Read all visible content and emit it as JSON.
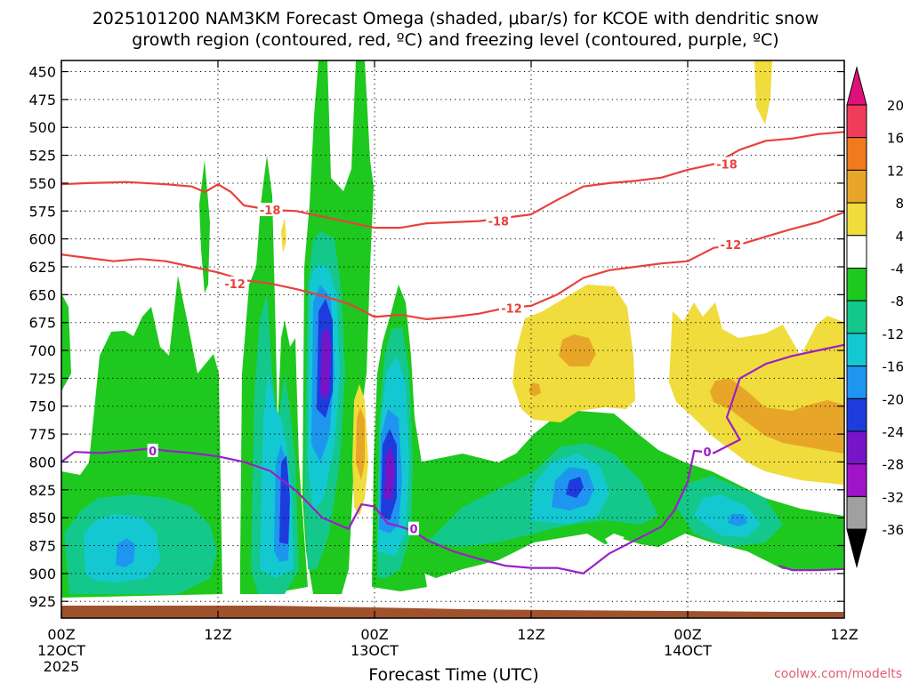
{
  "chart_data": {
    "type": "heatmap",
    "title_line1": "2025101200 NAM3KM Forecast Omega (shaded, μbar/s) for KCOE with dendritic snow",
    "title_line2": "growth region (contoured, red, ºC) and freezing level (contoured, purple, ºC)",
    "xlabel": "Forecast Time (UTC)",
    "credit": "coolwx.com/modelts",
    "x_range_hours": [
      0,
      60
    ],
    "x_ticks": [
      {
        "hour": 0,
        "labels": [
          "00Z",
          "12OCT",
          "2025"
        ]
      },
      {
        "hour": 12,
        "labels": [
          "12Z"
        ]
      },
      {
        "hour": 24,
        "labels": [
          "00Z",
          "13OCT"
        ]
      },
      {
        "hour": 36,
        "labels": [
          "12Z"
        ]
      },
      {
        "hour": 48,
        "labels": [
          "00Z",
          "14OCT"
        ]
      },
      {
        "hour": 60,
        "labels": [
          "12Z"
        ]
      }
    ],
    "y_range_hpa": [
      440,
      940
    ],
    "y_ticks": [
      450,
      475,
      500,
      525,
      550,
      575,
      600,
      625,
      650,
      675,
      700,
      725,
      750,
      775,
      800,
      825,
      850,
      875,
      900,
      925
    ],
    "colorbar": {
      "labels": [
        "20",
        "16",
        "12",
        "8",
        "4",
        "-4",
        "-8",
        "-12",
        "-16",
        "-20",
        "-24",
        "-28",
        "-32",
        "-36"
      ],
      "colors": [
        "#f03c5a",
        "#f07a1e",
        "#e8a628",
        "#f0dc3c",
        "#ffffff",
        "#1ec81e",
        "#14c88c",
        "#14c8d2",
        "#1e96f0",
        "#1e3cdc",
        "#7814c8",
        "#a014c8",
        "#a0a0a0",
        "#000000"
      ],
      "top_arrow_color": "#e0107a",
      "bottom_arrow_color": "#000000"
    },
    "temperature_contours": [
      {
        "name": "-18 C",
        "label": "-18",
        "color": "#e8413c",
        "points": [
          [
            0,
            551
          ],
          [
            2,
            550
          ],
          [
            5,
            549
          ],
          [
            8,
            551
          ],
          [
            10,
            553
          ],
          [
            11,
            558
          ],
          [
            12,
            551
          ],
          [
            13,
            558
          ],
          [
            14,
            570
          ],
          [
            16,
            574
          ],
          [
            18,
            575
          ],
          [
            20,
            580
          ],
          [
            22,
            585
          ],
          [
            24,
            590
          ],
          [
            26,
            590
          ],
          [
            28,
            586
          ],
          [
            32,
            584
          ],
          [
            36,
            578
          ],
          [
            38,
            565
          ],
          [
            40,
            553
          ],
          [
            42,
            550
          ],
          [
            44,
            548
          ],
          [
            46,
            545
          ],
          [
            48,
            538
          ],
          [
            50,
            533
          ],
          [
            52,
            520
          ],
          [
            54,
            512
          ],
          [
            56,
            510
          ],
          [
            58,
            506
          ],
          [
            60,
            504
          ]
        ],
        "labels_at": [
          [
            16,
            574
          ],
          [
            33.5,
            584
          ],
          [
            51,
            533
          ]
        ]
      },
      {
        "name": "-12 C",
        "label": "-12",
        "color": "#e8413c",
        "points": [
          [
            0,
            614
          ],
          [
            2,
            617
          ],
          [
            4,
            620
          ],
          [
            6,
            618
          ],
          [
            8,
            620
          ],
          [
            10,
            625
          ],
          [
            12,
            630
          ],
          [
            14,
            637
          ],
          [
            16,
            640
          ],
          [
            18,
            645
          ],
          [
            20,
            651
          ],
          [
            22,
            658
          ],
          [
            24,
            670
          ],
          [
            26,
            668
          ],
          [
            28,
            672
          ],
          [
            30,
            670
          ],
          [
            32,
            667
          ],
          [
            34,
            662
          ],
          [
            36,
            660
          ],
          [
            38,
            650
          ],
          [
            40,
            635
          ],
          [
            42,
            628
          ],
          [
            44,
            625
          ],
          [
            46,
            622
          ],
          [
            48,
            620
          ],
          [
            50,
            608
          ],
          [
            52,
            605
          ],
          [
            54,
            598
          ],
          [
            56,
            591
          ],
          [
            58,
            585
          ],
          [
            60,
            576
          ]
        ],
        "labels_at": [
          [
            13.3,
            640
          ],
          [
            34.5,
            662
          ],
          [
            51.3,
            605
          ]
        ]
      },
      {
        "name": "0 C freezing level",
        "label": "0",
        "color": "#9b1fc8",
        "points": [
          [
            0,
            800
          ],
          [
            1,
            791
          ],
          [
            3,
            792
          ],
          [
            5,
            790
          ],
          [
            7,
            788
          ],
          [
            8,
            790
          ],
          [
            10,
            792
          ],
          [
            12,
            795
          ],
          [
            14,
            800
          ],
          [
            16,
            808
          ],
          [
            18,
            826
          ],
          [
            20,
            850
          ],
          [
            22,
            860
          ],
          [
            23,
            838
          ],
          [
            24,
            840
          ],
          [
            25,
            855
          ],
          [
            26,
            858
          ],
          [
            27,
            862
          ],
          [
            28,
            870
          ],
          [
            30,
            880
          ],
          [
            32,
            887
          ],
          [
            34,
            893
          ],
          [
            36,
            895
          ],
          [
            38,
            895
          ],
          [
            40,
            900
          ],
          [
            42,
            882
          ],
          [
            44,
            870
          ],
          [
            46,
            858
          ],
          [
            47,
            843
          ],
          [
            48,
            818
          ],
          [
            48.5,
            790
          ],
          [
            50,
            792
          ],
          [
            52,
            780
          ],
          [
            51,
            760
          ],
          [
            52,
            725
          ],
          [
            54,
            712
          ],
          [
            56,
            705
          ],
          [
            58,
            700
          ],
          [
            60,
            695
          ]
        ],
        "labels_at": [
          [
            7,
            790
          ],
          [
            27,
            860
          ],
          [
            49.5,
            791
          ]
        ]
      },
      {
        "name": "0 C lower branch",
        "label": "",
        "color": "#9b1fc8",
        "points": [
          [
            55,
            893
          ],
          [
            56,
            897
          ],
          [
            58,
            897
          ],
          [
            60,
            896
          ]
        ],
        "labels_at": []
      }
    ],
    "terrain_color": "#a0522d",
    "omega_regions": [
      {
        "name": "ascent-early-low",
        "min_value": -16,
        "center_hour": 5,
        "center_hpa": 855
      },
      {
        "name": "ascent-12z-column",
        "min_value": -24,
        "center_hour": 17,
        "center_hpa": 800
      },
      {
        "name": "ascent-18z-core",
        "min_value": -28,
        "center_hour": 20.5,
        "center_hpa": 660
      },
      {
        "name": "ascent-03z-core",
        "min_value": -28,
        "center_hour": 25,
        "center_hpa": 760
      },
      {
        "name": "ascent-16z-low",
        "min_value": -24,
        "center_hour": 39.5,
        "center_hpa": 775
      },
      {
        "name": "ascent-03z-day3",
        "min_value": -16,
        "center_hour": 51.5,
        "center_hpa": 820
      },
      {
        "name": "descent-15z-mid",
        "max_value": 12,
        "center_hour": 39.5,
        "center_hpa": 660
      },
      {
        "name": "descent-06z-mid",
        "max_value": 12,
        "center_hour": 56.5,
        "center_hpa": 720
      },
      {
        "name": "descent-upper",
        "max_value": 8,
        "center_hour": 53.3,
        "center_hpa": 455
      },
      {
        "name": "descent-narrow",
        "max_value": 12,
        "center_hour": 22.5,
        "center_hpa": 750
      }
    ]
  }
}
